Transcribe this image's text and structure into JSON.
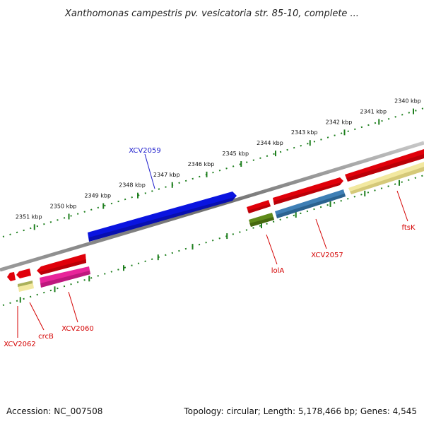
{
  "title": "Xanthomonas campestris pv. vesicatoria str. 85-10, complete ...",
  "footer": {
    "accession": "Accession: NC_007508",
    "info": "Topology: circular; Length: 5,178,466 bp; Genes: 4,545"
  },
  "ruler": {
    "unit": "kbp",
    "ticks": [
      2340,
      2341,
      2342,
      2343,
      2344,
      2345,
      2346,
      2347,
      2348,
      2349,
      2350,
      2351
    ]
  },
  "colors": {
    "red": "#e0000a",
    "blue": "#0a14e0",
    "magenta": "#e8249a",
    "steel": "#3f7fb5",
    "olive": "#5f8a1a",
    "pale_yellow": "#f2e8a0",
    "backbone": "#8a8a8a",
    "tick_green": "#1e7f1e",
    "label_red": "#d40000",
    "label_blue": "#1a1acc"
  },
  "genes": [
    {
      "name": "XCV2059",
      "label_color": "blue",
      "strand": "plus",
      "track": "top"
    },
    {
      "name": "ftsK",
      "label_color": "red",
      "strand": "plus",
      "track": "bottom"
    },
    {
      "name": "XCV2057",
      "label_color": "red",
      "strand": "plus",
      "track": "bottom"
    },
    {
      "name": "lolA",
      "label_color": "red",
      "strand": "plus",
      "track": "bottom"
    },
    {
      "name": "XCV2060",
      "label_color": "red",
      "strand": "minus",
      "track": "bottom"
    },
    {
      "name": "crcB",
      "label_color": "red",
      "strand": "minus",
      "track": "bottom"
    },
    {
      "name": "XCV2062",
      "label_color": "red",
      "strand": "minus",
      "track": "bottom"
    }
  ]
}
